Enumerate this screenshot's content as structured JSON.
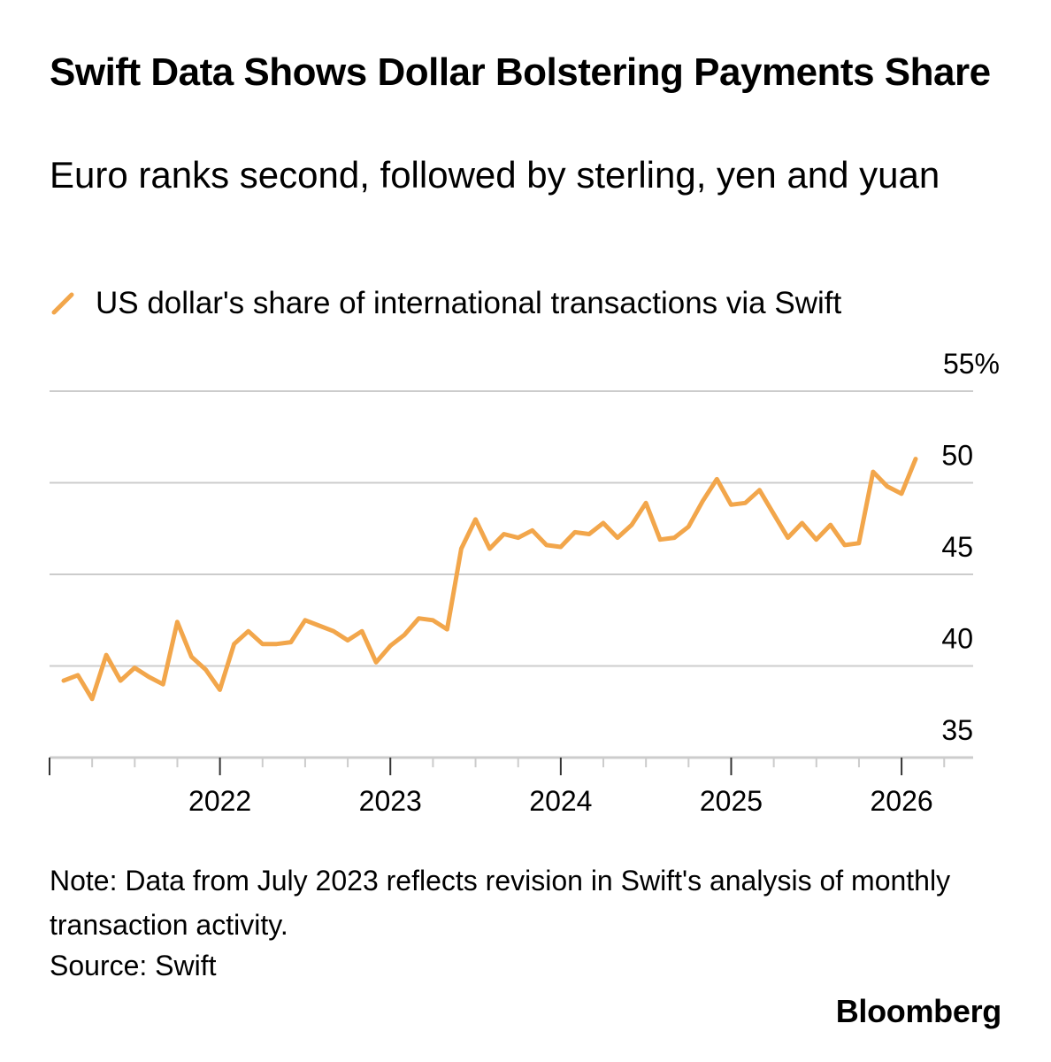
{
  "colors": {
    "series": "#f2a64b",
    "grid": "#cccccc",
    "axis": "#333333",
    "text": "#000000"
  },
  "branding": {
    "name": "Bloomberg"
  },
  "note": "Note: Data from July 2023 reflects revision in Swift's analysis of monthly transaction activity.",
  "source": "Source: Swift",
  "chart_data": {
    "type": "line",
    "title": "Swift Data Shows Dollar Bolstering Payments Share",
    "subtitle": "Euro ranks second, followed by sterling, yen and yuan",
    "legend": [
      "US dollar's share of international transactions via Swift"
    ],
    "ylim": [
      35,
      55
    ],
    "yticks": [
      35,
      40,
      45,
      50,
      55
    ],
    "ytick_labels": [
      "35",
      "40",
      "45",
      "50",
      "55%"
    ],
    "xlim": [
      2021.0,
      2026.42
    ],
    "xticks": [
      2022,
      2023,
      2024,
      2025,
      2026
    ],
    "xtick_labels": [
      "2022",
      "2023",
      "2024",
      "2025",
      "2026"
    ],
    "grid": true,
    "series": [
      {
        "name": "US dollar's share of international transactions via Swift",
        "x_start": 2021.083,
        "x_step": 0.08333,
        "values": [
          39.2,
          39.5,
          38.2,
          40.6,
          39.2,
          39.9,
          39.4,
          39.0,
          42.4,
          40.5,
          39.8,
          38.7,
          41.2,
          41.9,
          41.2,
          41.2,
          41.3,
          42.5,
          42.2,
          41.9,
          41.4,
          41.9,
          40.2,
          41.1,
          41.7,
          42.6,
          42.5,
          42.0,
          46.4,
          48.0,
          46.4,
          47.2,
          47.0,
          47.4,
          46.6,
          46.5,
          47.3,
          47.2,
          47.8,
          47.0,
          47.7,
          48.9,
          46.9,
          47.0,
          47.6,
          49.0,
          50.2,
          48.8,
          48.9,
          49.6,
          48.3,
          47.0,
          47.8,
          46.9,
          47.7,
          46.6,
          46.7,
          50.6,
          49.8,
          49.4,
          51.3
        ]
      }
    ]
  }
}
